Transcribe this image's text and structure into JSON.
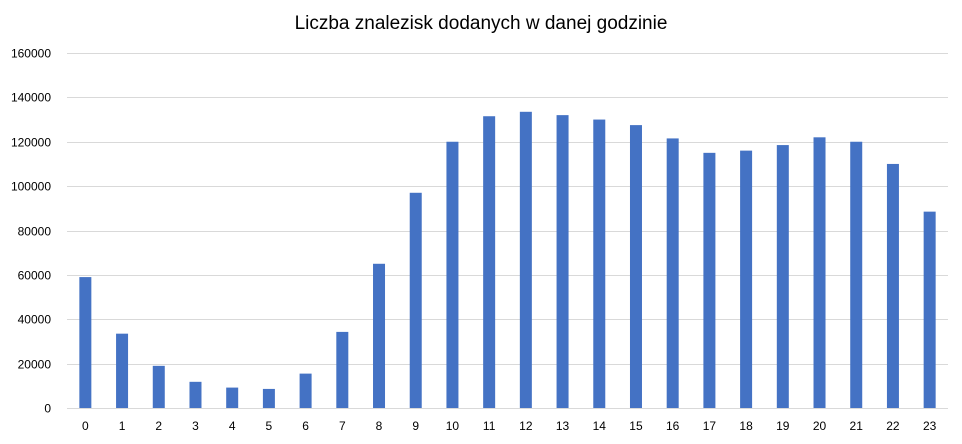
{
  "chart_data": {
    "type": "bar",
    "title": "Liczba znalezisk dodanych w danej godzinie",
    "xlabel": "",
    "ylabel": "",
    "categories": [
      "0",
      "1",
      "2",
      "3",
      "4",
      "5",
      "6",
      "7",
      "8",
      "9",
      "10",
      "11",
      "12",
      "13",
      "14",
      "15",
      "16",
      "17",
      "18",
      "19",
      "20",
      "21",
      "22",
      "23"
    ],
    "values": [
      59000,
      33500,
      19000,
      11800,
      9200,
      8600,
      15500,
      34300,
      65000,
      97000,
      120000,
      131500,
      133500,
      132000,
      130000,
      127500,
      121500,
      115000,
      116000,
      118500,
      122000,
      120000,
      110000,
      88500
    ],
    "yticks": [
      "0",
      "20000",
      "40000",
      "60000",
      "80000",
      "100000",
      "120000",
      "140000",
      "160000"
    ],
    "ylim": [
      0,
      160000
    ],
    "grid": true,
    "legend": "none",
    "bar_color": "#4472c4"
  }
}
